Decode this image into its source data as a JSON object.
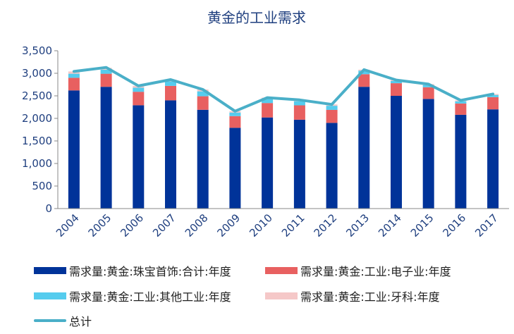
{
  "chart_data": {
    "type": "bar",
    "title": "黄金的工业需求",
    "categories": [
      "2004",
      "2005",
      "2006",
      "2007",
      "2008",
      "2009",
      "2010",
      "2011",
      "2012",
      "2013",
      "2014",
      "2015",
      "2016",
      "2017"
    ],
    "ylim": [
      0,
      3500
    ],
    "yticks": [
      "0",
      "500",
      "1,000",
      "1,500",
      "2,000",
      "2,500",
      "3,000",
      "3,500"
    ],
    "ytick_values": [
      0,
      500,
      1000,
      1500,
      2000,
      2500,
      3000,
      3500
    ],
    "series": [
      {
        "name": "需求量:黄金:珠宝首饰:合计:年度",
        "kind": "stacked-bar",
        "color": "#003399",
        "values": [
          2620,
          2700,
          2290,
          2400,
          2190,
          1790,
          2020,
          1970,
          1900,
          2700,
          2500,
          2430,
          2080,
          2200
        ]
      },
      {
        "name": "需求量:黄金:工业:电子业:年度",
        "kind": "stacked-bar",
        "color": "#e86060",
        "values": [
          280,
          290,
          300,
          320,
          300,
          260,
          320,
          320,
          290,
          280,
          280,
          260,
          250,
          270
        ]
      },
      {
        "name": "需求量:黄金:工业:其他工业:年度",
        "kind": "stacked-bar",
        "color": "#55ccee",
        "values": [
          90,
          90,
          90,
          100,
          110,
          80,
          90,
          90,
          90,
          80,
          50,
          50,
          50,
          50
        ]
      },
      {
        "name": "需求量:黄金:工业:牙科:年度",
        "kind": "stacked-bar",
        "color": "#f5c8c8",
        "values": [
          50,
          40,
          40,
          40,
          40,
          30,
          30,
          30,
          30,
          20,
          20,
          20,
          20,
          20
        ]
      },
      {
        "name": "总计",
        "kind": "line",
        "color": "#4aafc8",
        "values": [
          3040,
          3130,
          2720,
          2860,
          2640,
          2160,
          2460,
          2410,
          2310,
          3080,
          2850,
          2760,
          2400,
          2540
        ]
      }
    ],
    "grid": false,
    "legend_position": "bottom"
  }
}
